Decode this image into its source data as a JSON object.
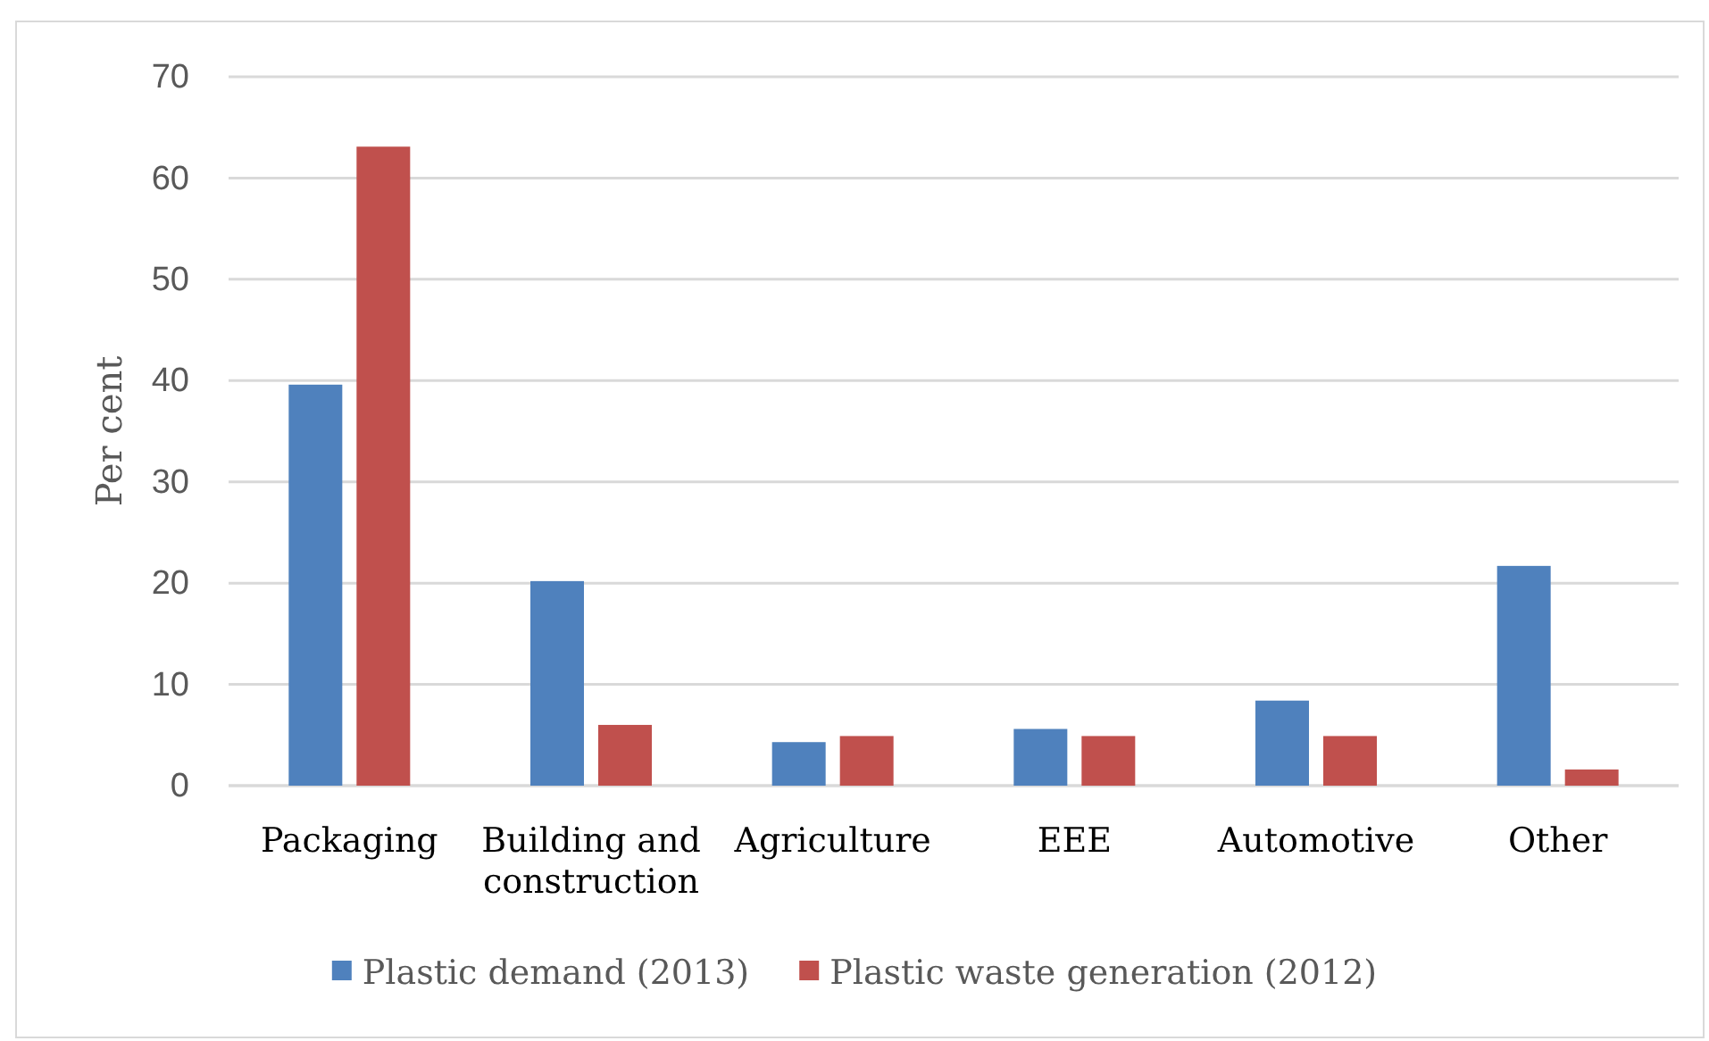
{
  "chart_data": {
    "type": "bar",
    "ylabel": "Per cent",
    "categories": [
      "Packaging",
      "Building and construction",
      "Agriculture",
      "EEE",
      "Automotive",
      "Other"
    ],
    "series": [
      {
        "name": "Plastic demand (2013)",
        "color": "#4f81bd",
        "values": [
          39.6,
          20.2,
          4.3,
          5.6,
          8.4,
          21.7
        ]
      },
      {
        "name": "Plastic waste generation (2012)",
        "color": "#c0504d",
        "values": [
          63.1,
          6.0,
          4.9,
          4.9,
          4.9,
          1.6
        ]
      }
    ],
    "ylim": [
      0,
      70
    ],
    "yticks": [
      0,
      10,
      20,
      30,
      40,
      50,
      60,
      70
    ],
    "grid": "y",
    "legend": "bottom"
  }
}
